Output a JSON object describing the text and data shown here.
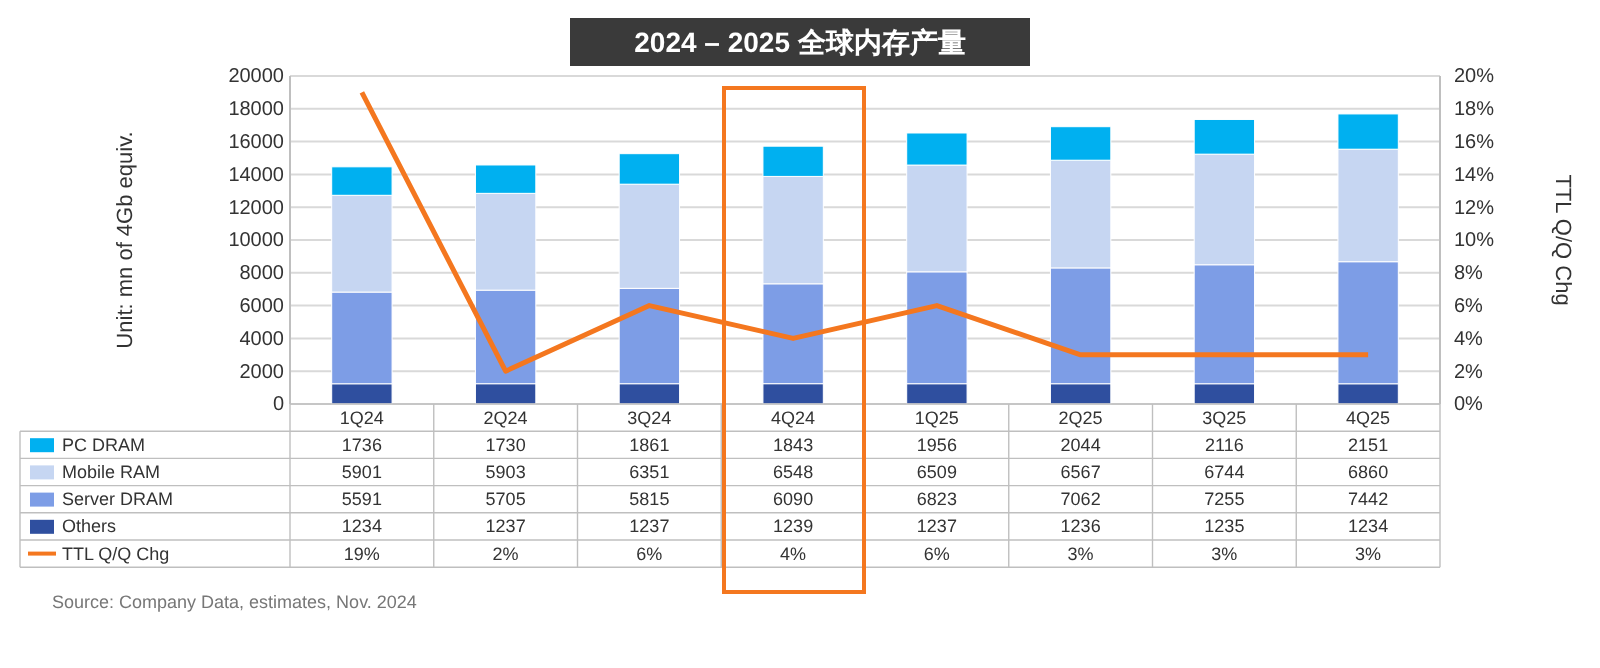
{
  "chart_data": {
    "type": "bar",
    "title": "2024 – 2025 全球内存产量",
    "ylabel": "Unit: mn of 4Gb equiv.",
    "y2label": "TTL Q/Q Chg",
    "categories": [
      "1Q24",
      "2Q24",
      "3Q24",
      "4Q24",
      "1Q25",
      "2Q25",
      "3Q25",
      "4Q25"
    ],
    "stacked": true,
    "series": [
      {
        "name": "Others",
        "color": "#2f4f9f",
        "values": [
          1234,
          1237,
          1237,
          1239,
          1237,
          1236,
          1235,
          1234
        ]
      },
      {
        "name": "Server DRAM",
        "color": "#7d9de6",
        "values": [
          5591,
          5705,
          5815,
          6090,
          6823,
          7062,
          7255,
          7442
        ]
      },
      {
        "name": "Mobile RAM",
        "color": "#c6d6f2",
        "values": [
          5901,
          5903,
          6351,
          6548,
          6509,
          6567,
          6744,
          6860
        ]
      },
      {
        "name": "PC DRAM",
        "color": "#00b0f0",
        "values": [
          1736,
          1730,
          1861,
          1843,
          1956,
          2044,
          2116,
          2151
        ]
      },
      {
        "name": "TTL Q/Q Chg",
        "color": "#f4771f",
        "type": "line",
        "axis": "y2",
        "values": [
          19,
          2,
          6,
          4,
          6,
          3,
          3,
          3
        ],
        "value_labels": [
          "19%",
          "2%",
          "6%",
          "4%",
          "6%",
          "3%",
          "3%",
          "3%"
        ]
      }
    ],
    "ylim": [
      0,
      20000
    ],
    "yticks": [
      0,
      2000,
      4000,
      6000,
      8000,
      10000,
      12000,
      14000,
      16000,
      18000,
      20000
    ],
    "y2lim": [
      0,
      20
    ],
    "y2ticks": [
      {
        "value": 0,
        "label": "0%"
      },
      {
        "value": 2,
        "label": "2%"
      },
      {
        "value": 4,
        "label": "4%"
      },
      {
        "value": 6,
        "label": "6%"
      },
      {
        "value": 8,
        "label": "8%"
      },
      {
        "value": 10,
        "label": "10%"
      },
      {
        "value": 12,
        "label": "12%"
      },
      {
        "value": 14,
        "label": "14%"
      },
      {
        "value": 16,
        "label": "16%"
      },
      {
        "value": 18,
        "label": "18%"
      },
      {
        "value": 20,
        "label": "20%"
      }
    ],
    "grid": "y",
    "data_labels": true,
    "legend": "bottom",
    "marker": "none",
    "line_style": "solid",
    "annotations": [
      "Source: Company Data, estimates, Nov. 2024"
    ]
  }
}
